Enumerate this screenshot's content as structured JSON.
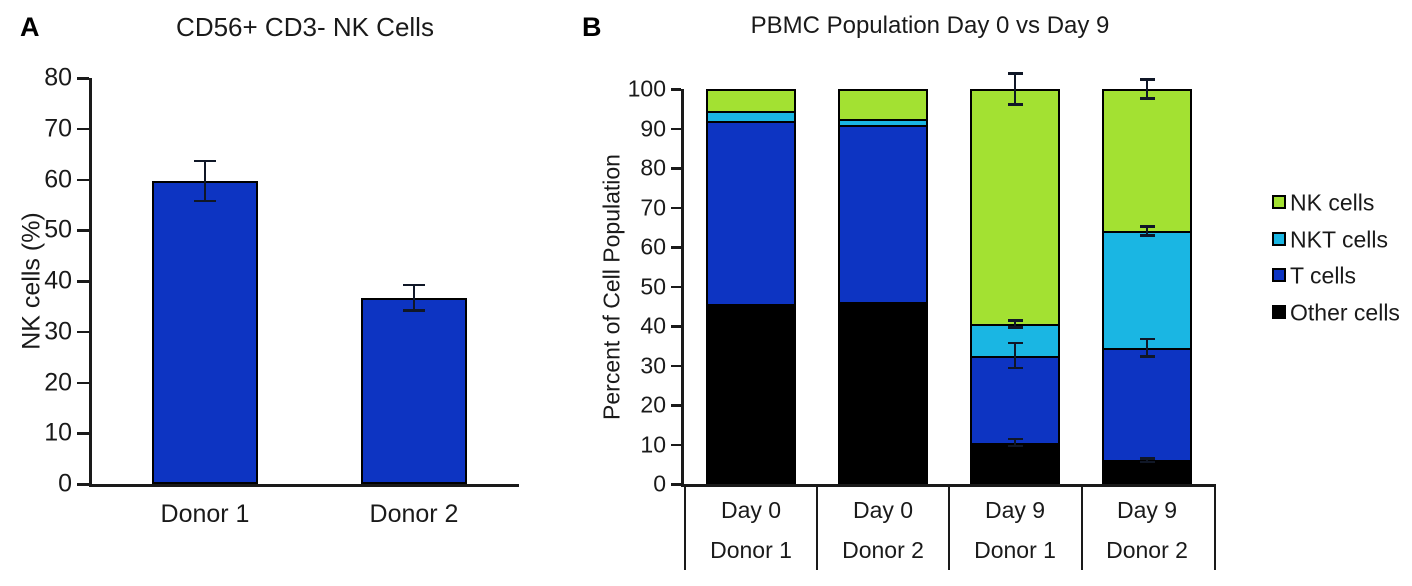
{
  "chart_data": [
    {
      "panel_label": "A",
      "type": "bar",
      "title": "CD56+ CD3- NK Cells",
      "ylabel": "NK cells (%)",
      "categories": [
        "Donor 1",
        "Donor 2"
      ],
      "values": [
        59.7,
        36.7
      ],
      "error_bars": [
        4.0,
        2.6
      ],
      "ylim": [
        0,
        80
      ],
      "ytick_step": 10,
      "bar_color": "#0D34C2",
      "grid": false
    },
    {
      "panel_label": "B",
      "type": "stacked-bar",
      "title": "PBMC Population Day 0 vs Day 9",
      "ylabel": "Percent of Cell Population",
      "categories": [
        {
          "line1": "Day 0",
          "line2": "Donor 1"
        },
        {
          "line1": "Day 0",
          "line2": "Donor 2"
        },
        {
          "line1": "Day 9",
          "line2": "Donor 1"
        },
        {
          "line1": "Day 9",
          "line2": "Donor 2"
        }
      ],
      "series": [
        {
          "name": "Other cells",
          "color": "#000000",
          "values": [
            45.5,
            46.0,
            10.5,
            6.0
          ]
        },
        {
          "name": "T cells",
          "color": "#0D34C2",
          "values": [
            46.5,
            45.0,
            22.0,
            28.5
          ]
        },
        {
          "name": "NKT cells",
          "color": "#1AB6E3",
          "values": [
            2.5,
            1.5,
            8.0,
            29.5
          ]
        },
        {
          "name": "NK cells",
          "color": "#A3E132",
          "values": [
            5.5,
            7.5,
            59.5,
            36.0
          ]
        }
      ],
      "error_bars": [
        [],
        [],
        [
          {
            "at": 10.5,
            "err": 1.0
          },
          {
            "at": 32.5,
            "err": 3.2
          },
          {
            "at": 40.5,
            "err": 1.0
          },
          {
            "at": 100.0,
            "err": 4.0
          }
        ],
        [
          {
            "at": 6.0,
            "err": 0.5
          },
          {
            "at": 34.5,
            "err": 2.3
          },
          {
            "at": 64.0,
            "err": 1.2
          },
          {
            "at": 100.0,
            "err": 2.5
          }
        ]
      ],
      "ylim": [
        0,
        100
      ],
      "ytick_step": 10,
      "grid": false,
      "legend": {
        "position": "right",
        "items": [
          {
            "label": "NK cells",
            "color": "#A3E132"
          },
          {
            "label": "NKT cells",
            "color": "#1AB6E3"
          },
          {
            "label": "T cells",
            "color": "#0D34C2"
          },
          {
            "label": "Other cells",
            "color": "#000000"
          }
        ]
      }
    }
  ]
}
